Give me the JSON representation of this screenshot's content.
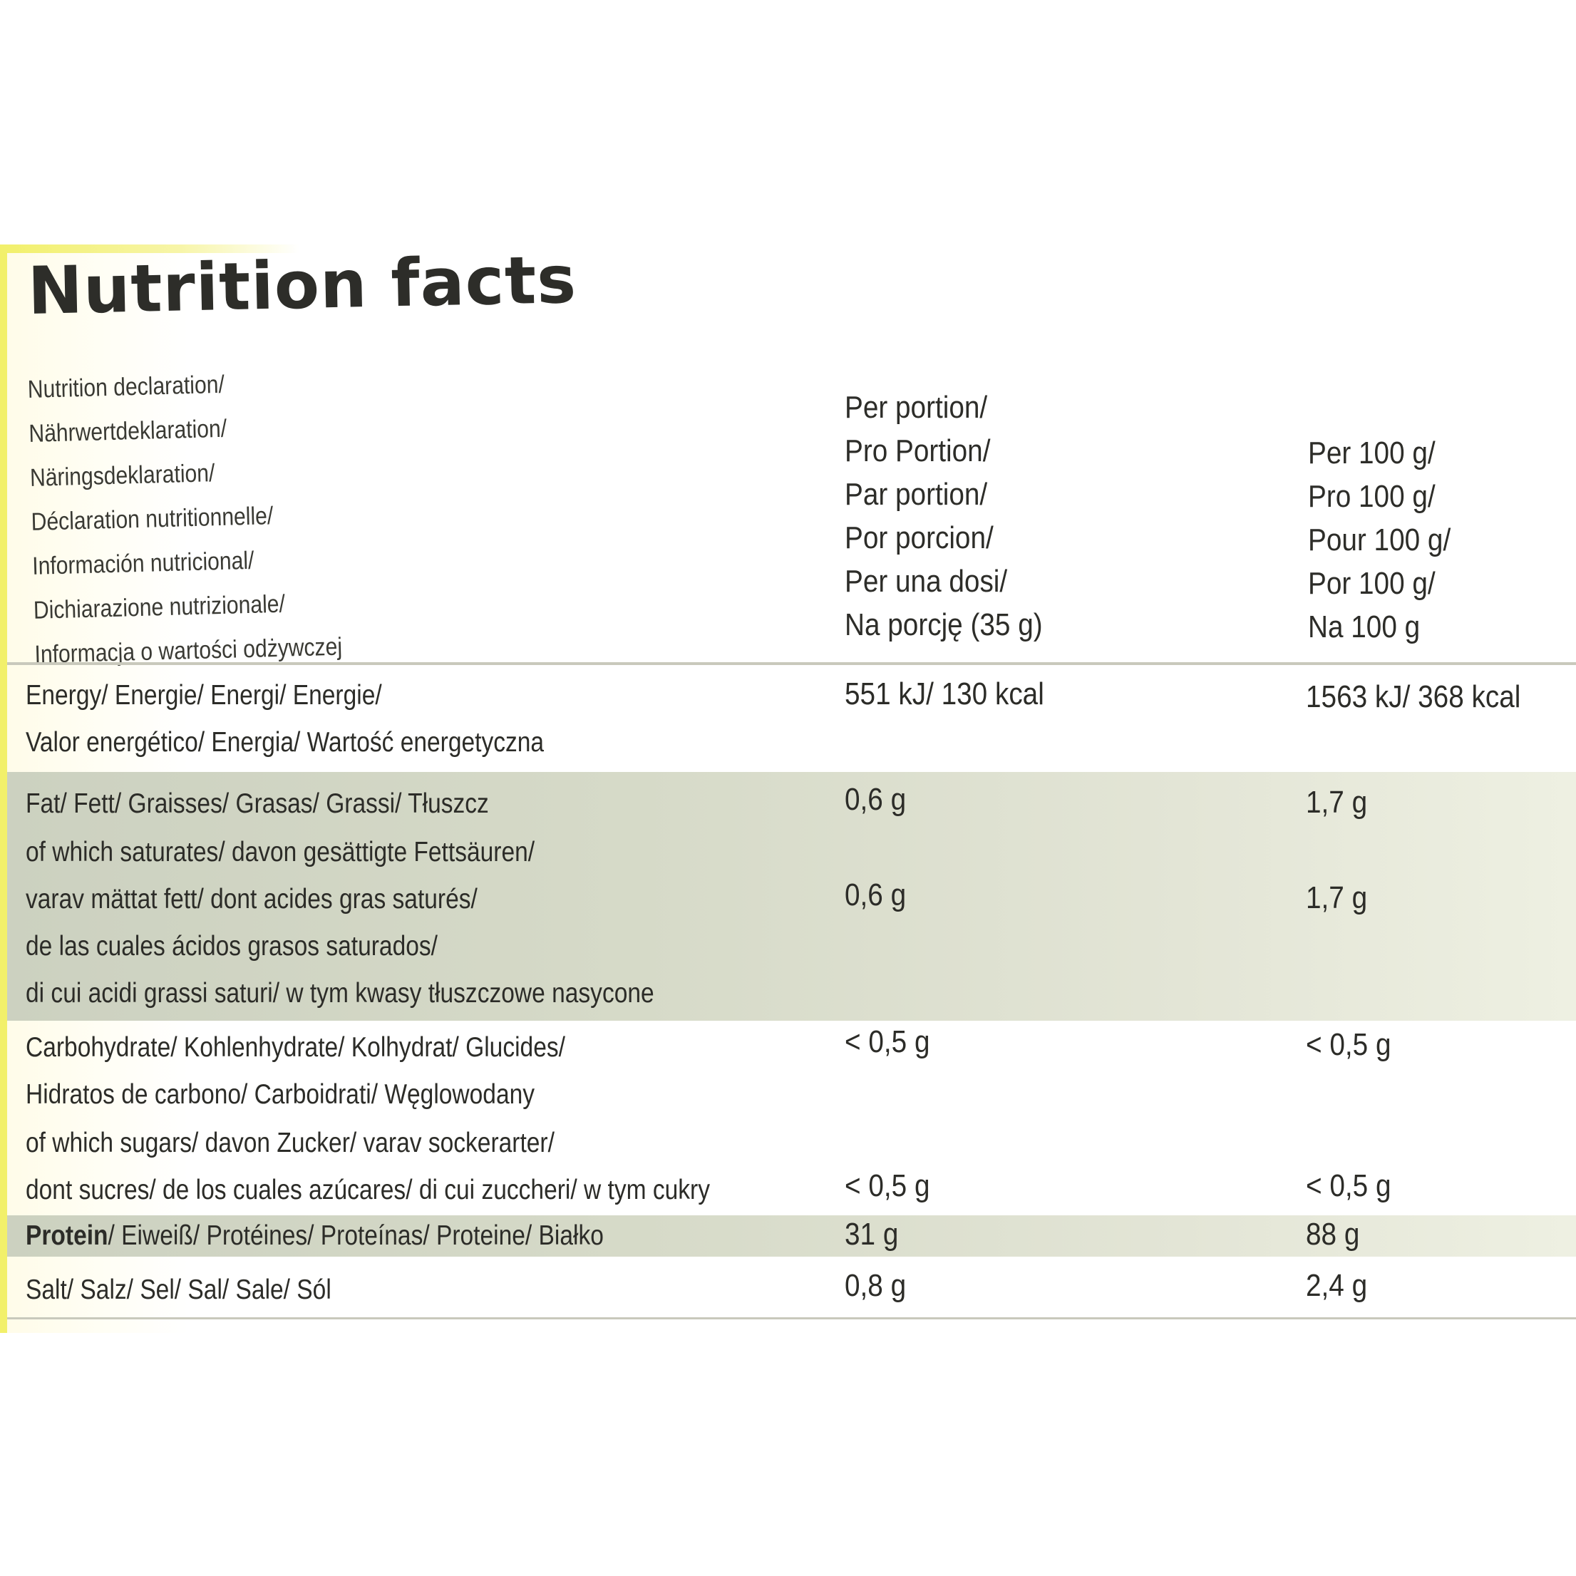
{
  "title": "Nutrition facts",
  "declaration_lines": [
    "Nutrition declaration/",
    "Nährwertdeklaration/",
    "Näringsdeklaration/",
    "Déclaration nutritionnelle/",
    "Información nutricional/",
    "Dichiarazione nutrizionale/",
    "Informacja o wartości odżywczej"
  ],
  "per_portion_lines": [
    "Per portion/",
    "Pro Portion/",
    "Par portion/",
    "Por porcion/",
    "Per una dosi/",
    "Na porcję (35 g)"
  ],
  "per_100g_lines": [
    "Per 100 g/",
    "Pro 100 g/",
    "Pour 100 g/",
    "Por 100 g/",
    "Na 100 g"
  ],
  "energy": {
    "name_lines": [
      "Energy/ Energie/ Energi/ Energie/",
      "Valor energético/ Energia/ Wartość energetyczna"
    ],
    "per_portion": "551 kJ/ 130 kcal",
    "per_100g": "1563 kJ/ 368 kcal"
  },
  "fat": {
    "name": "Fat/ Fett/ Graisses/ Grasas/ Grassi/ Tłuszcz",
    "per_portion": "0,6 g",
    "per_100g": "1,7 g"
  },
  "saturates": {
    "name_lines": [
      "of which saturates/ davon gesättigte Fettsäuren/",
      "varav mättat fett/ dont acides gras saturés/",
      "de las cuales ácidos grasos saturados/",
      "di cui acidi grassi saturi/ w tym kwasy tłuszczowe nasycone"
    ],
    "per_portion": "0,6 g",
    "per_100g": "1,7 g"
  },
  "carbohydrate": {
    "name_lines": [
      "Carbohydrate/ Kohlenhydrate/ Kolhydrat/ Glucides/",
      "Hidratos de carbono/ Carboidrati/ Węglowodany"
    ],
    "per_portion": "< 0,5 g",
    "per_100g": "< 0,5 g"
  },
  "sugars": {
    "name_lines": [
      "of which sugars/ davon Zucker/ varav sockerarter/",
      "dont sucres/ de los cuales azúcares/ di cui zuccheri/ w tym cukry"
    ],
    "per_portion": "< 0,5 g",
    "per_100g": "< 0,5 g"
  },
  "protein": {
    "name_bold": "Protein",
    "name_rest": "/ Eiweiß/ Protéines/ Proteínas/ Proteine/ Białko",
    "per_portion": "31 g",
    "per_100g": "88 g"
  },
  "salt": {
    "name": "Salt/ Salz/ Sel/ Sal/ Sale/ Sól",
    "per_portion": "0,8 g",
    "per_100g": "2,4 g"
  },
  "colors": {
    "accent_yellow": "#f2f06a",
    "shade_band": "#d6dac8",
    "text": "#2d2d29"
  }
}
